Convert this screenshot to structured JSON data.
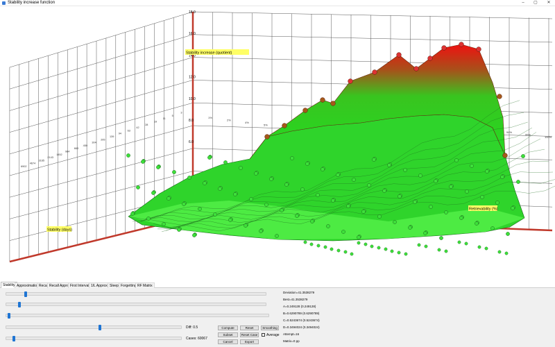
{
  "window": {
    "title": "Stability increase function",
    "min": "–",
    "max": "▢",
    "close": "✕"
  },
  "plot": {
    "labels": {
      "z": "Stability increase (quotient)",
      "r": "Retrievability (%)",
      "s": "Stability (days)"
    },
    "z_ticks": [
      "18.0",
      "16.0",
      "14.0",
      "12.0",
      "10.0",
      "8.0",
      "6.0"
    ],
    "r_ticks": [
      "1%",
      "2%",
      "4%",
      "5%",
      "6%",
      "8%",
      "94%",
      "95%",
      "100%"
    ],
    "s_ticks": [
      "3",
      "5",
      "11",
      "19",
      "28",
      "42",
      "63",
      "94",
      "139",
      "205",
      "304",
      "450",
      "663",
      "984",
      "1452",
      "2143",
      "3165",
      "4674",
      "6902"
    ],
    "colors": {
      "axis": "#c0392b",
      "grid": "#555555",
      "label_bg": "#ffff66",
      "low": "#22dd22",
      "high": "#ee1111",
      "edge": "#1c6a1c"
    }
  },
  "tabs": [
    "Stability",
    "Approximation",
    "Recall",
    "Recall Approx",
    "First Interval",
    "1/L Approx",
    "Sleep",
    "Forgetting",
    "RF Matrix"
  ],
  "controls": {
    "sliders": [
      {
        "level": 0.07
      },
      {
        "level": 0.045
      },
      {
        "level": 0.005
      }
    ],
    "diff_slider": {
      "level": 0.535,
      "label": "Diff: 0.5"
    },
    "cases_slider": {
      "level": 0.035,
      "label": "Cases: 60067"
    },
    "buttons": {
      "compute": "Compute",
      "reset": "Reset",
      "smoothing": "Smoothing",
      "subset": "Subset",
      "reset_case": "Reset Case",
      "average": "Average",
      "cancel": "Cancel",
      "export": "Export"
    }
  },
  "stats": {
    "deviation": "Deviation=41.3538279",
    "best": "Best=41.3538279",
    "a": "A=0.249128 (0.249128)",
    "b": "B=0.6290789 (0.6290789)",
    "c": "C=0.5243674 (0.5243674)",
    "d": "D=0.3494024 (0.3494024)",
    "attempt": "Attempt=16",
    "matrix": "Matrix=0 pp"
  }
}
